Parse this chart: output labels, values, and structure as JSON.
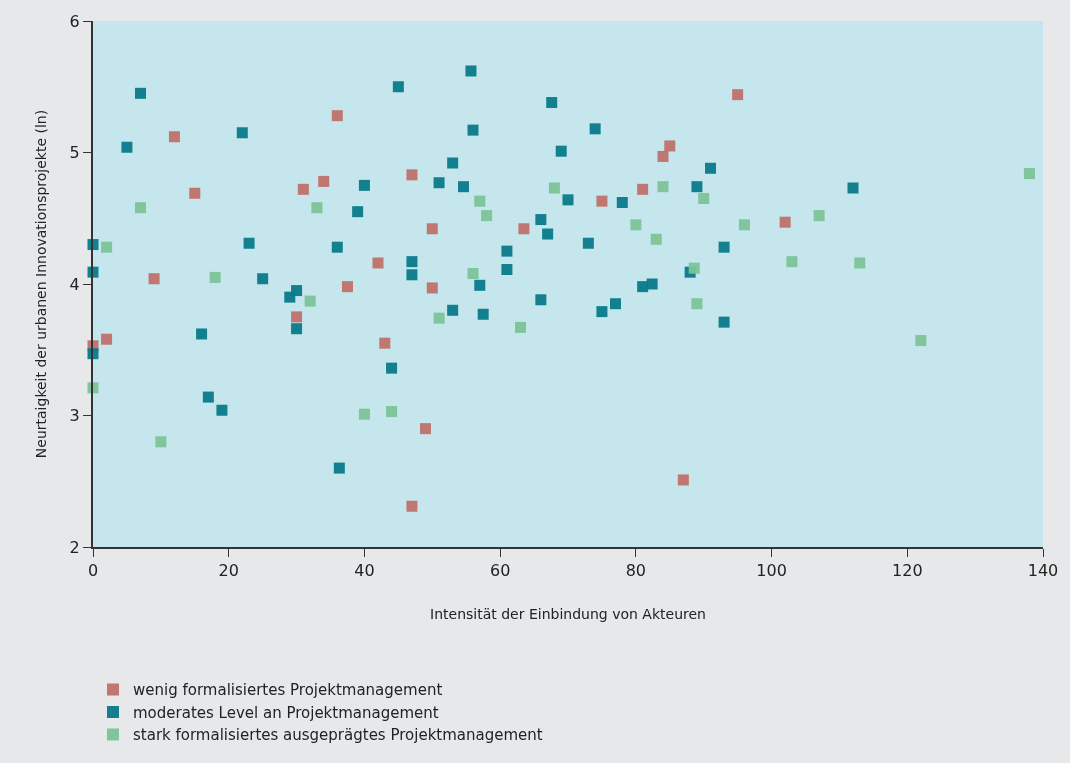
{
  "chart_data": {
    "type": "scatter",
    "xlabel": "Intensität der Einbindung von Akteuren",
    "ylabel": "Neurtaigkeit der urbanen Innovationsprojekte (ln)",
    "xlim": [
      0,
      140
    ],
    "ylim": [
      2,
      6
    ],
    "xticks": [
      0,
      20,
      40,
      60,
      80,
      100,
      120,
      140
    ],
    "yticks": [
      2,
      3,
      4,
      5,
      6
    ],
    "grid": false,
    "legend": "bottom",
    "marker": "square",
    "series": [
      {
        "name": "wenig formalisiertes Projektmanagement",
        "color": "#c0706a",
        "x": [
          0,
          2,
          9,
          12,
          15,
          30,
          31,
          34,
          36,
          37.5,
          42,
          43,
          47,
          47,
          49,
          50,
          50,
          63.5,
          75,
          81,
          84,
          85,
          87,
          95,
          102
        ],
        "values": [
          3.53,
          3.58,
          4.04,
          5.12,
          4.69,
          3.75,
          4.72,
          4.78,
          5.28,
          3.98,
          4.16,
          3.55,
          4.83,
          2.31,
          2.9,
          4.42,
          3.97,
          4.42,
          4.63,
          4.72,
          4.97,
          5.05,
          2.51,
          5.44,
          4.47
        ]
      },
      {
        "name": "moderates Level an Projektmanagement",
        "color": "#087a8a",
        "x": [
          0,
          0,
          0,
          5,
          7,
          16,
          17,
          19,
          22,
          23,
          25,
          29,
          30,
          30,
          36,
          36.3,
          39,
          40,
          44,
          45,
          47,
          47,
          51,
          53,
          53,
          54.6,
          55.7,
          56,
          57,
          57.5,
          61,
          61,
          66,
          66,
          67,
          67.6,
          69,
          70,
          73,
          74,
          75,
          77,
          78,
          81,
          82.4,
          88,
          89,
          91,
          93,
          93,
          112
        ],
        "values": [
          4.3,
          4.09,
          3.47,
          5.04,
          5.45,
          3.62,
          3.14,
          3.04,
          5.15,
          4.31,
          4.04,
          3.9,
          3.95,
          3.66,
          4.28,
          2.6,
          4.55,
          4.75,
          3.36,
          5.5,
          4.17,
          4.07,
          4.77,
          4.92,
          3.8,
          4.74,
          5.62,
          5.17,
          3.99,
          3.77,
          4.25,
          4.11,
          4.49,
          3.88,
          4.38,
          5.38,
          5.01,
          4.64,
          4.31,
          5.18,
          3.79,
          3.85,
          4.62,
          3.98,
          4.0,
          4.09,
          4.74,
          4.88,
          4.28,
          3.71,
          4.73
        ]
      },
      {
        "name": "stark formalisiertes ausgeprägtes Projektmanagement",
        "color": "#7cc397",
        "x": [
          0,
          2,
          7,
          10,
          18,
          32,
          33,
          40,
          44,
          51,
          56,
          57,
          58,
          63,
          68,
          80,
          83,
          84,
          88.6,
          89,
          90,
          96,
          103,
          107,
          113,
          122,
          138
        ],
        "values": [
          3.21,
          4.28,
          4.58,
          2.8,
          4.05,
          3.87,
          4.58,
          3.01,
          3.03,
          3.74,
          4.08,
          4.63,
          4.52,
          3.67,
          4.73,
          4.45,
          4.34,
          4.74,
          4.12,
          3.85,
          4.65,
          4.45,
          4.17,
          4.52,
          4.16,
          3.57,
          4.84
        ]
      }
    ]
  }
}
